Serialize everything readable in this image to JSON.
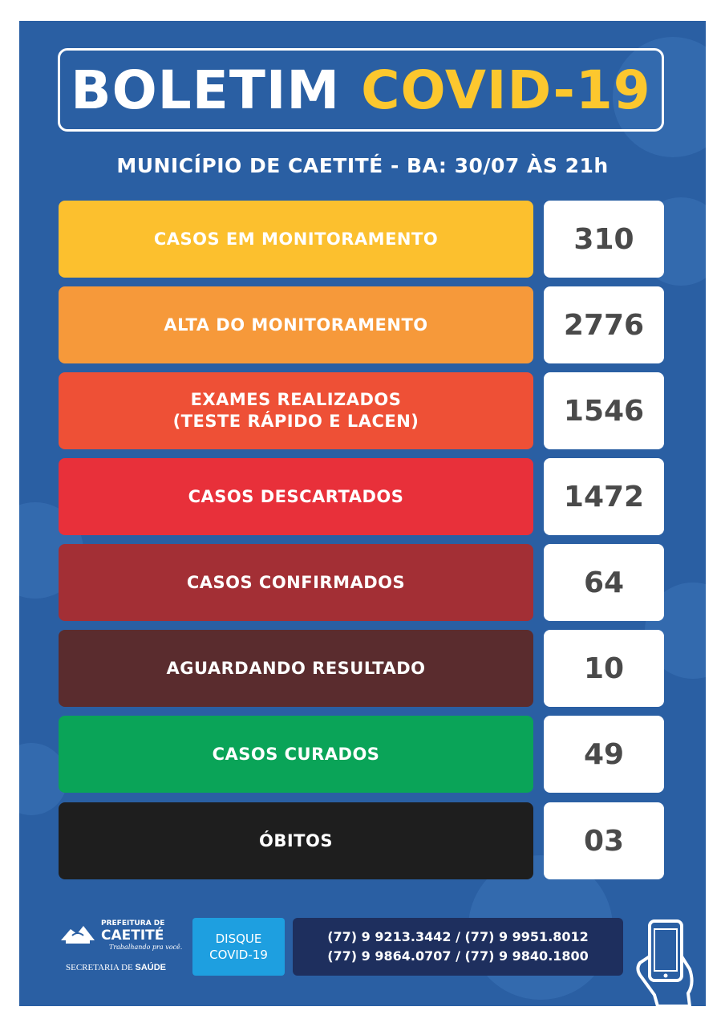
{
  "title": {
    "part1": "BOLETIM",
    "part2": "COVID-19"
  },
  "subtitle": "MUNICÍPIO DE CAETITÉ - BA: 30/07 ÀS 21h",
  "colors": {
    "background": "#2a5fa3",
    "title_accent": "#fcc72e",
    "value_text": "#4a4a4a"
  },
  "rows": [
    {
      "label": "CASOS EM MONITORAMENTO",
      "value": "310",
      "color": "#fcc02e"
    },
    {
      "label": "ALTA DO MONITORAMENTO",
      "value": "2776",
      "color": "#f6993a"
    },
    {
      "label": "EXAMES REALIZADOS\n(TESTE RÁPIDO E LACEN)",
      "value": "1546",
      "color": "#ee5036"
    },
    {
      "label": "CASOS DESCARTADOS",
      "value": "1472",
      "color": "#e8303a"
    },
    {
      "label": "CASOS CONFIRMADOS",
      "value": "64",
      "color": "#a32f35"
    },
    {
      "label": "AGUARDANDO RESULTADO",
      "value": "10",
      "color": "#5a2c2e"
    },
    {
      "label": "CASOS CURADOS",
      "value": "49",
      "color": "#0aa458"
    },
    {
      "label": "ÓBITOS",
      "value": "03",
      "color": "#1e1e1e"
    }
  ],
  "footer": {
    "logo_top": "PREFEITURA DE",
    "logo_main": "CAETITÉ",
    "logo_slogan": "Trabalhando pra você.",
    "secretaria": "SECRETARIA DE",
    "saude": "SAÚDE",
    "disque_line1": "DISQUE",
    "disque_line2": "COVID-19",
    "phones_line1": "(77) 9 9213.3442 / (77) 9 9951.8012",
    "phones_line2": "(77) 9 9864.0707 / (77) 9 9840.1800"
  }
}
